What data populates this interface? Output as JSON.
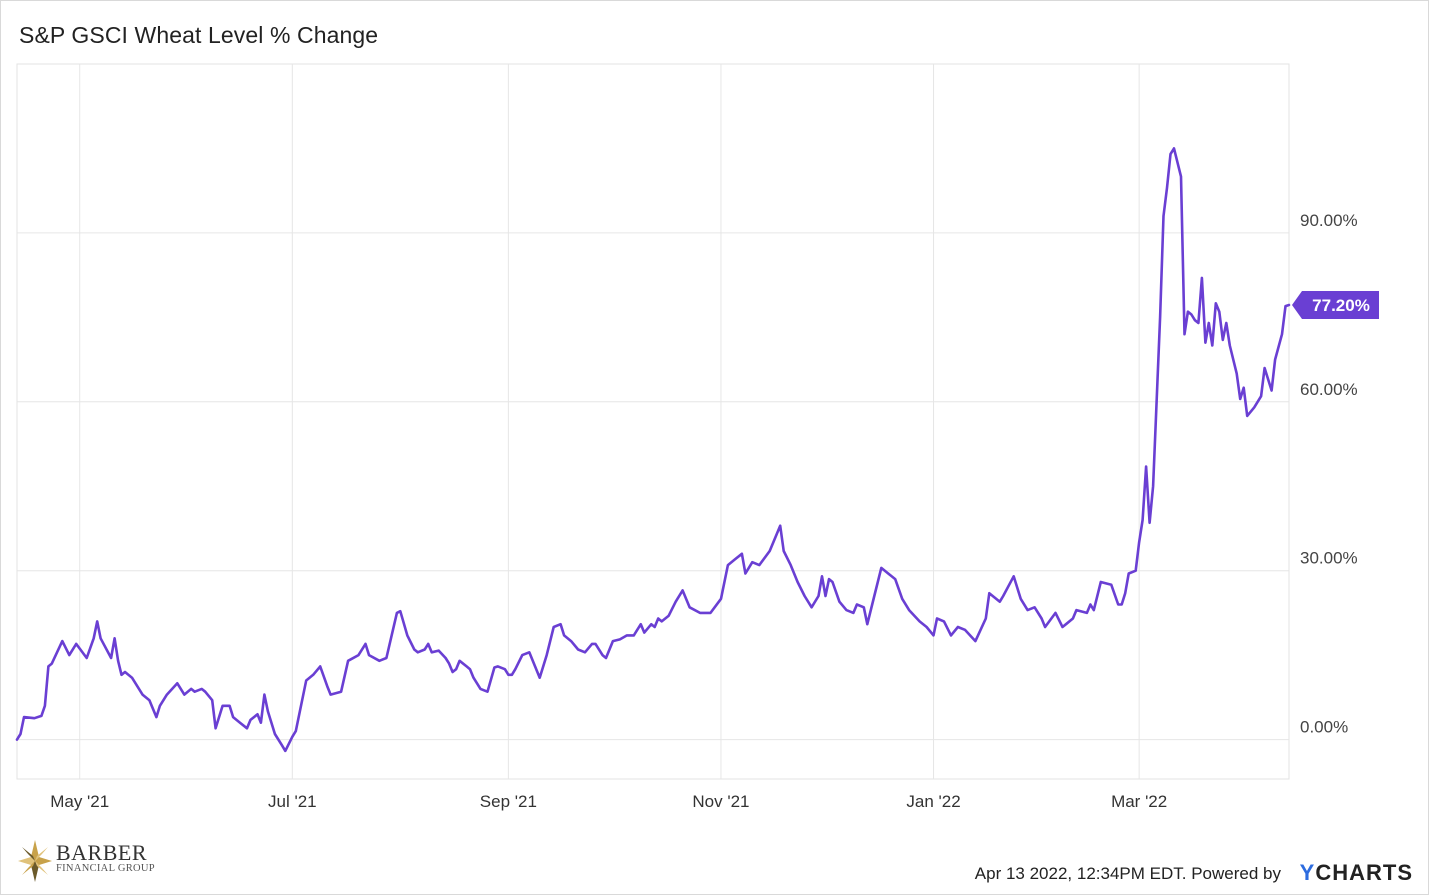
{
  "chart_data": {
    "type": "line",
    "title": "S&P GSCI Wheat Level % Change",
    "xlabel": "",
    "ylabel": "",
    "x_ticks": [
      "May '21",
      "Jul '21",
      "Sep '21",
      "Nov '21",
      "Jan '22",
      "Mar '22"
    ],
    "y_ticks": [
      "0.00%",
      "30.00%",
      "60.00%",
      "90.00%"
    ],
    "y_tick_values": [
      0,
      30,
      60,
      90
    ],
    "ylim": [
      -7,
      120
    ],
    "xlim": [
      "2021-04-13",
      "2022-04-13"
    ],
    "grid": true,
    "line_color": "#6a3fd3",
    "last_value_label": "77.20%",
    "series": [
      {
        "x": [
          "2021-04-13",
          "2021-04-14",
          "2021-04-15",
          "2021-04-18",
          "2021-04-20",
          "2021-04-21",
          "2021-04-22",
          "2021-04-23",
          "2021-04-26",
          "2021-04-28",
          "2021-04-30",
          "2021-05-03",
          "2021-05-05",
          "2021-05-06",
          "2021-05-07",
          "2021-05-10",
          "2021-05-11",
          "2021-05-12",
          "2021-05-13",
          "2021-05-14",
          "2021-05-16",
          "2021-05-17",
          "2021-05-19",
          "2021-05-21",
          "2021-05-23",
          "2021-05-24",
          "2021-05-26",
          "2021-05-29",
          "2021-05-31",
          "2021-06-02",
          "2021-06-03",
          "2021-06-05",
          "2021-06-06",
          "2021-06-08",
          "2021-06-09",
          "2021-06-11",
          "2021-06-13",
          "2021-06-14",
          "2021-06-16",
          "2021-06-18",
          "2021-06-19",
          "2021-06-21",
          "2021-06-22",
          "2021-06-23",
          "2021-06-24",
          "2021-06-26",
          "2021-06-28",
          "2021-06-29",
          "2021-07-01",
          "2021-07-02",
          "2021-07-05",
          "2021-07-07",
          "2021-07-09",
          "2021-07-11",
          "2021-07-12",
          "2021-07-15",
          "2021-07-17",
          "2021-07-20",
          "2021-07-22",
          "2021-07-23",
          "2021-07-26",
          "2021-07-28",
          "2021-07-31",
          "2021-08-01",
          "2021-08-03",
          "2021-08-05",
          "2021-08-06",
          "2021-08-08",
          "2021-08-09",
          "2021-08-10",
          "2021-08-12",
          "2021-08-14",
          "2021-08-15",
          "2021-08-16",
          "2021-08-17",
          "2021-08-18",
          "2021-08-20",
          "2021-08-21",
          "2021-08-22",
          "2021-08-24",
          "2021-08-26",
          "2021-08-28",
          "2021-08-29",
          "2021-08-31",
          "2021-09-01",
          "2021-09-02",
          "2021-09-03",
          "2021-09-05",
          "2021-09-07",
          "2021-09-10",
          "2021-09-12",
          "2021-09-14",
          "2021-09-16",
          "2021-09-17",
          "2021-09-19",
          "2021-09-21",
          "2021-09-23",
          "2021-09-25",
          "2021-09-26",
          "2021-09-28",
          "2021-09-29",
          "2021-10-01",
          "2021-10-03",
          "2021-10-05",
          "2021-10-07",
          "2021-10-09",
          "2021-10-10",
          "2021-10-12",
          "2021-10-13",
          "2021-10-14",
          "2021-10-15",
          "2021-10-17",
          "2021-10-19",
          "2021-10-21",
          "2021-10-23",
          "2021-10-26",
          "2021-10-29",
          "2021-11-01",
          "2021-11-03",
          "2021-11-05",
          "2021-11-07",
          "2021-11-08",
          "2021-11-10",
          "2021-11-12",
          "2021-11-15",
          "2021-11-18",
          "2021-11-19",
          "2021-11-21",
          "2021-11-23",
          "2021-11-25",
          "2021-11-27",
          "2021-11-29",
          "2021-11-30",
          "2021-12-01",
          "2021-12-02",
          "2021-12-03",
          "2021-12-05",
          "2021-12-07",
          "2021-12-09",
          "2021-12-10",
          "2021-12-12",
          "2021-12-13",
          "2021-12-15",
          "2021-12-17",
          "2021-12-19",
          "2021-12-21",
          "2021-12-23",
          "2021-12-25",
          "2021-12-28",
          "2021-12-30",
          "2022-01-01",
          "2022-01-02",
          "2022-01-04",
          "2022-01-06",
          "2022-01-08",
          "2022-01-10",
          "2022-01-13",
          "2022-01-16",
          "2022-01-17",
          "2022-01-20",
          "2022-01-21",
          "2022-01-24",
          "2022-01-26",
          "2022-01-28",
          "2022-01-30",
          "2022-02-01",
          "2022-02-02",
          "2022-02-05",
          "2022-02-07",
          "2022-02-08",
          "2022-02-10",
          "2022-02-11",
          "2022-02-14",
          "2022-02-15",
          "2022-02-16",
          "2022-02-18",
          "2022-02-21",
          "2022-02-23",
          "2022-02-24",
          "2022-02-25",
          "2022-02-26",
          "2022-02-28",
          "2022-03-01",
          "2022-03-02",
          "2022-03-03",
          "2022-03-04",
          "2022-03-05",
          "2022-03-06",
          "2022-03-07",
          "2022-03-08",
          "2022-03-09",
          "2022-03-10",
          "2022-03-11",
          "2022-03-13",
          "2022-03-14",
          "2022-03-15",
          "2022-03-16",
          "2022-03-17",
          "2022-03-18",
          "2022-03-19",
          "2022-03-20",
          "2022-03-21",
          "2022-03-22",
          "2022-03-23",
          "2022-03-24",
          "2022-03-25",
          "2022-03-26",
          "2022-03-27",
          "2022-03-29",
          "2022-03-30",
          "2022-03-31",
          "2022-04-01",
          "2022-04-03",
          "2022-04-05",
          "2022-04-06",
          "2022-04-08",
          "2022-04-09",
          "2022-04-11",
          "2022-04-12",
          "2022-04-13"
        ],
        "values": [
          0.0,
          1.0,
          4.0,
          3.8,
          4.2,
          6.0,
          13.0,
          13.5,
          17.5,
          15.0,
          17.0,
          14.5,
          18.0,
          21.0,
          18.0,
          14.5,
          18.0,
          14.0,
          11.5,
          12.0,
          11.0,
          10.0,
          8.0,
          7.0,
          4.0,
          6.0,
          8.0,
          10.0,
          8.0,
          9.0,
          8.5,
          9.0,
          8.5,
          7.0,
          2.0,
          6.0,
          6.0,
          4.0,
          3.0,
          2.0,
          3.5,
          4.5,
          3.0,
          8.0,
          5.0,
          1.0,
          -1.0,
          -2.0,
          0.5,
          1.5,
          10.5,
          11.5,
          13.0,
          9.5,
          8.0,
          8.5,
          14.0,
          15.0,
          17.0,
          15.0,
          14.0,
          14.5,
          22.5,
          22.8,
          18.5,
          16.0,
          15.5,
          16.0,
          17.0,
          15.5,
          15.8,
          14.5,
          13.5,
          12.0,
          12.5,
          14.0,
          13.0,
          12.5,
          11.0,
          9.0,
          8.5,
          12.8,
          13.0,
          12.5,
          11.5,
          11.5,
          12.5,
          15.0,
          15.5,
          11.0,
          15.0,
          20.0,
          20.5,
          18.5,
          17.5,
          16.0,
          15.5,
          17.0,
          17.0,
          15.0,
          14.5,
          17.5,
          17.8,
          18.5,
          18.5,
          20.5,
          19.0,
          20.5,
          20.0,
          21.5,
          21.0,
          22.0,
          24.5,
          26.5,
          23.5,
          22.5,
          22.5,
          25.0,
          31.0,
          32.0,
          33.0,
          29.5,
          31.5,
          31.0,
          33.5,
          38.0,
          33.5,
          31.0,
          28.0,
          25.5,
          23.5,
          25.5,
          29.0,
          25.5,
          28.5,
          28.0,
          24.5,
          23.0,
          22.5,
          24.0,
          23.5,
          20.5,
          25.5,
          30.5,
          29.5,
          28.5,
          25.0,
          23.0,
          21.0,
          20.0,
          18.5,
          21.5,
          21.0,
          18.5,
          20.0,
          19.5,
          17.5,
          21.5,
          26.0,
          24.5,
          25.5,
          29.0,
          25.0,
          23.0,
          23.5,
          21.5,
          20.0,
          22.5,
          20.0,
          20.5,
          21.5,
          23.0,
          22.5,
          24.0,
          23.0,
          28.0,
          27.5,
          24.0,
          24.0,
          26.0,
          29.5,
          30.0,
          35.0,
          39.0,
          48.5,
          38.5,
          45.0,
          60.0,
          75.0,
          93.0,
          98.0,
          104.0,
          105.0,
          100.0,
          72.0,
          76.0,
          75.5,
          74.5,
          74.0,
          82.0,
          70.5,
          74.0,
          70.0,
          77.5,
          76.0,
          71.0,
          74.0,
          70.0,
          65.0,
          60.5,
          62.5,
          57.5,
          59.0,
          61.0,
          66.0,
          62.0,
          67.5,
          72.0,
          77.0,
          77.2
        ]
      }
    ]
  },
  "footer": {
    "timestamp": "Apr 13 2022, 12:34PM EDT.",
    "powered_by": "Powered by",
    "brand_y": "Y",
    "brand_rest": "CHARTS"
  },
  "logo": {
    "name": "BARBER",
    "subtitle": "FINANCIAL GROUP",
    "colors": [
      "#c8a24a",
      "#6b5a2a",
      "#e0c27a"
    ]
  }
}
